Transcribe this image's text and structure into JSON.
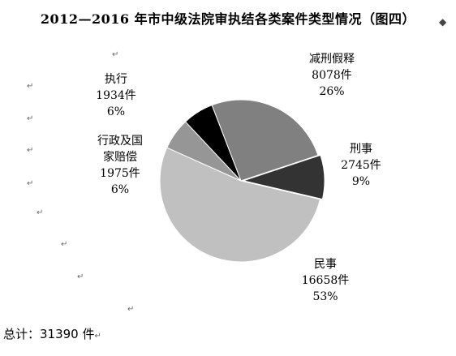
{
  "chart_data": {
    "type": "pie",
    "title": "2012—2016 年市中级法院审执结各类案件类型情况（图四）",
    "slices": [
      {
        "name": "减刑假释",
        "count": "8078件",
        "percent": "26%",
        "value": 8078,
        "color": "#808080"
      },
      {
        "name": "刑事",
        "count": "2745件",
        "percent": "9%",
        "value": 2745,
        "color": "#333333"
      },
      {
        "name": "民事",
        "count": "16658件",
        "percent": "53%",
        "value": 16658,
        "color": "#c0c0c0"
      },
      {
        "name": "行政及国家赔偿",
        "name_line1": "行政及国",
        "name_line2": "家赔偿",
        "count": "1975件",
        "percent": "6%",
        "value": 1975,
        "color": "#969696"
      },
      {
        "name": "执行",
        "count": "1934件",
        "percent": "6%",
        "value": 1934,
        "color": "#000000"
      }
    ],
    "total_label": "总计：31390 件"
  },
  "marks": {
    "paragraph": "↵",
    "title_end": "◆"
  }
}
